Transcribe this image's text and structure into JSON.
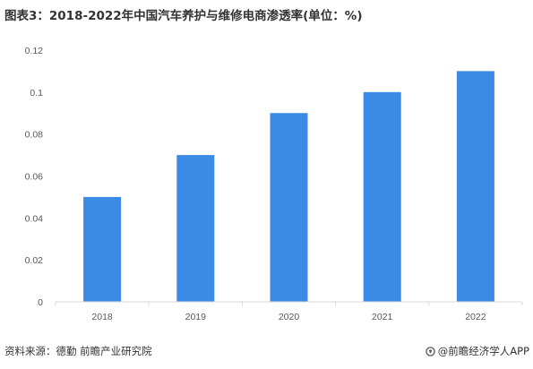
{
  "title": "图表3：2018-2022年中国汽车养护与维修电商渗透率(单位：%)",
  "footer": {
    "source": "资料来源：德勤 前瞻产业研究院",
    "brand": "@前瞻经济学人APP",
    "brand_icon": "qianzhan-logo-icon"
  },
  "chart_data": {
    "type": "bar",
    "categories": [
      "2018",
      "2019",
      "2020",
      "2021",
      "2022"
    ],
    "values": [
      0.05,
      0.07,
      0.09,
      0.1,
      0.11
    ],
    "yticks": [
      "0",
      "0.02",
      "0.04",
      "0.06",
      "0.08",
      "0.1",
      "0.12"
    ],
    "ylim": [
      0,
      0.12
    ],
    "title": "图表3：2018-2022年中国汽车养护与维修电商渗透率(单位：%)",
    "xlabel": "",
    "ylabel": "",
    "grid": false,
    "bar_color": "#3b8ae6",
    "axis_color": "#d9d9d9",
    "tick_label_color": "#595959"
  }
}
